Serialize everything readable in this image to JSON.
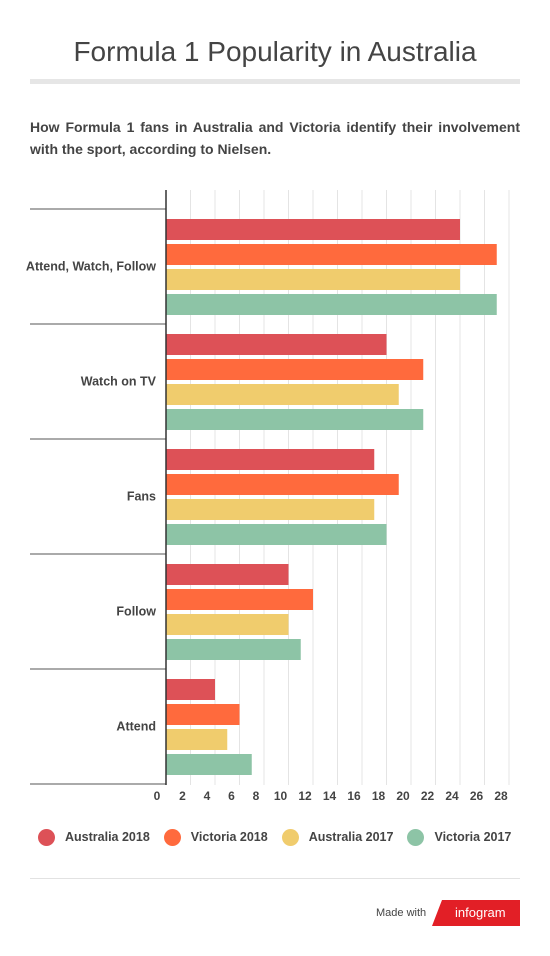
{
  "title": "Formula 1 Popularity in Australia",
  "subtitle": "How Formula 1 fans in Australia and Victoria identify their involvement with the sport, according to Nielsen.",
  "chart_data": {
    "type": "bar",
    "orientation": "horizontal",
    "categories": [
      "Attend, Watch, Follow",
      "Watch on TV",
      "Fans",
      "Follow",
      "Attend"
    ],
    "series": [
      {
        "name": "Australia 2018",
        "color": "#dd5157",
        "values": [
          24,
          18,
          17,
          10,
          4
        ]
      },
      {
        "name": "Victoria 2018",
        "color": "#ff6a3d",
        "values": [
          27,
          21,
          19,
          12,
          6
        ]
      },
      {
        "name": "Australia 2017",
        "color": "#f0cc6d",
        "values": [
          24,
          19,
          17,
          10,
          5
        ]
      },
      {
        "name": "Victoria 2017",
        "color": "#8dc4a6",
        "values": [
          27,
          21,
          18,
          11,
          7
        ]
      }
    ],
    "xlim": [
      0,
      28
    ],
    "xticks": [
      0,
      2,
      4,
      6,
      8,
      10,
      12,
      14,
      16,
      18,
      20,
      22,
      24,
      26,
      28
    ],
    "grid": true,
    "legend": "bottom"
  },
  "footer": {
    "made_with": "Made with",
    "brand": "infogram",
    "brand_color": "#e21f26"
  }
}
